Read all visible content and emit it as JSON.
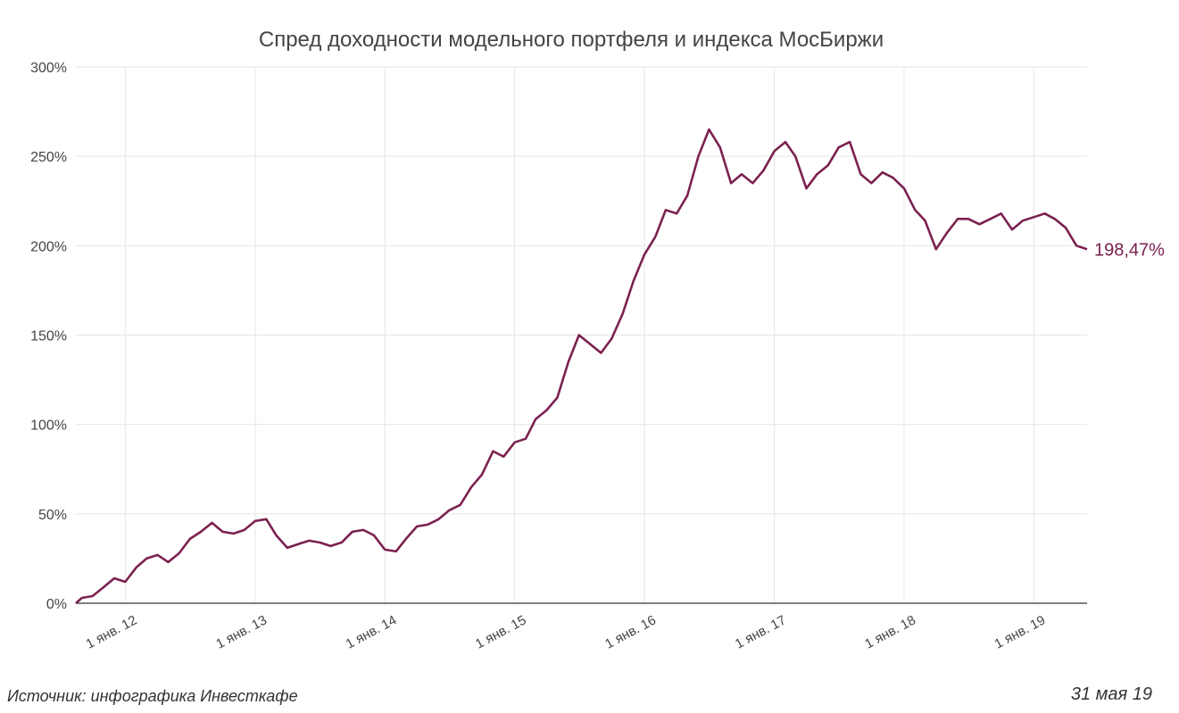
{
  "chart_data": {
    "type": "line",
    "title": "Спред доходности модельного портфеля и индекса МосБиржи",
    "xlabel": "",
    "ylabel": "",
    "x_range": [
      "2011-08-15",
      "2019-05-31"
    ],
    "ylim": [
      0,
      300
    ],
    "y_ticks": [
      0,
      50,
      100,
      150,
      200,
      250,
      300
    ],
    "y_tick_labels": [
      "0%",
      "50%",
      "100%",
      "150%",
      "200%",
      "250%",
      "300%"
    ],
    "x_ticks": [
      "2012-01-01",
      "2013-01-01",
      "2014-01-01",
      "2015-01-01",
      "2016-01-01",
      "2017-01-01",
      "2018-01-01",
      "2019-01-01"
    ],
    "x_tick_labels": [
      "1 янв. 12",
      "1 янв. 13",
      "1 янв. 14",
      "1 янв. 15",
      "1 янв. 16",
      "1 янв. 17",
      "1 янв. 18",
      "1 янв. 19"
    ],
    "grid": true,
    "line_color": "#7b2150",
    "end_label": "198,47%",
    "series": [
      {
        "x": [
          "2011-08-15",
          "2011-09-01",
          "2011-10-01",
          "2011-11-01",
          "2011-12-01",
          "2012-01-01",
          "2012-02-01",
          "2012-03-01",
          "2012-04-01",
          "2012-05-01",
          "2012-06-01",
          "2012-07-01",
          "2012-08-01",
          "2012-09-01",
          "2012-10-01",
          "2012-11-01",
          "2012-12-01",
          "2013-01-01",
          "2013-02-01",
          "2013-03-01",
          "2013-04-01",
          "2013-05-01",
          "2013-06-01",
          "2013-07-01",
          "2013-08-01",
          "2013-09-01",
          "2013-10-01",
          "2013-11-01",
          "2013-12-01",
          "2014-01-01",
          "2014-02-01",
          "2014-03-01",
          "2014-04-01",
          "2014-05-01",
          "2014-06-01",
          "2014-07-01",
          "2014-08-01",
          "2014-09-01",
          "2014-10-01",
          "2014-11-01",
          "2014-12-01",
          "2015-01-01",
          "2015-02-01",
          "2015-03-01",
          "2015-04-01",
          "2015-05-01",
          "2015-06-01",
          "2015-07-01",
          "2015-08-01",
          "2015-09-01",
          "2015-10-01",
          "2015-11-01",
          "2015-12-01",
          "2016-01-01",
          "2016-02-01",
          "2016-03-01",
          "2016-04-01",
          "2016-05-01",
          "2016-06-01",
          "2016-07-01",
          "2016-08-01",
          "2016-09-01",
          "2016-10-01",
          "2016-11-01",
          "2016-12-01",
          "2017-01-01",
          "2017-02-01",
          "2017-03-01",
          "2017-04-01",
          "2017-05-01",
          "2017-06-01",
          "2017-07-01",
          "2017-08-01",
          "2017-09-01",
          "2017-10-01",
          "2017-11-01",
          "2017-12-01",
          "2018-01-01",
          "2018-02-01",
          "2018-03-01",
          "2018-04-01",
          "2018-05-01",
          "2018-06-01",
          "2018-07-01",
          "2018-08-01",
          "2018-09-01",
          "2018-10-01",
          "2018-11-01",
          "2018-12-01",
          "2019-01-01",
          "2019-02-01",
          "2019-03-01",
          "2019-04-01",
          "2019-05-01",
          "2019-05-31"
        ],
        "values": [
          0,
          3,
          4,
          9,
          14,
          12,
          20,
          25,
          27,
          23,
          28,
          36,
          40,
          45,
          40,
          39,
          41,
          46,
          47,
          38,
          31,
          33,
          35,
          34,
          32,
          34,
          40,
          41,
          38,
          30,
          29,
          36,
          43,
          44,
          47,
          52,
          55,
          65,
          72,
          85,
          82,
          90,
          92,
          103,
          108,
          115,
          135,
          150,
          145,
          140,
          148,
          162,
          180,
          195,
          205,
          220,
          218,
          228,
          250,
          265,
          255,
          235,
          240,
          235,
          242,
          253,
          258,
          250,
          232,
          240,
          245,
          255,
          258,
          240,
          235,
          241,
          238,
          232,
          220,
          214,
          198,
          207,
          215,
          215,
          212,
          215,
          218,
          209,
          214,
          216,
          218,
          215,
          210,
          200,
          198
        ]
      }
    ]
  },
  "footer": {
    "source": "Источник: инфографика Инвесткафе",
    "date": "31 мая 19"
  }
}
